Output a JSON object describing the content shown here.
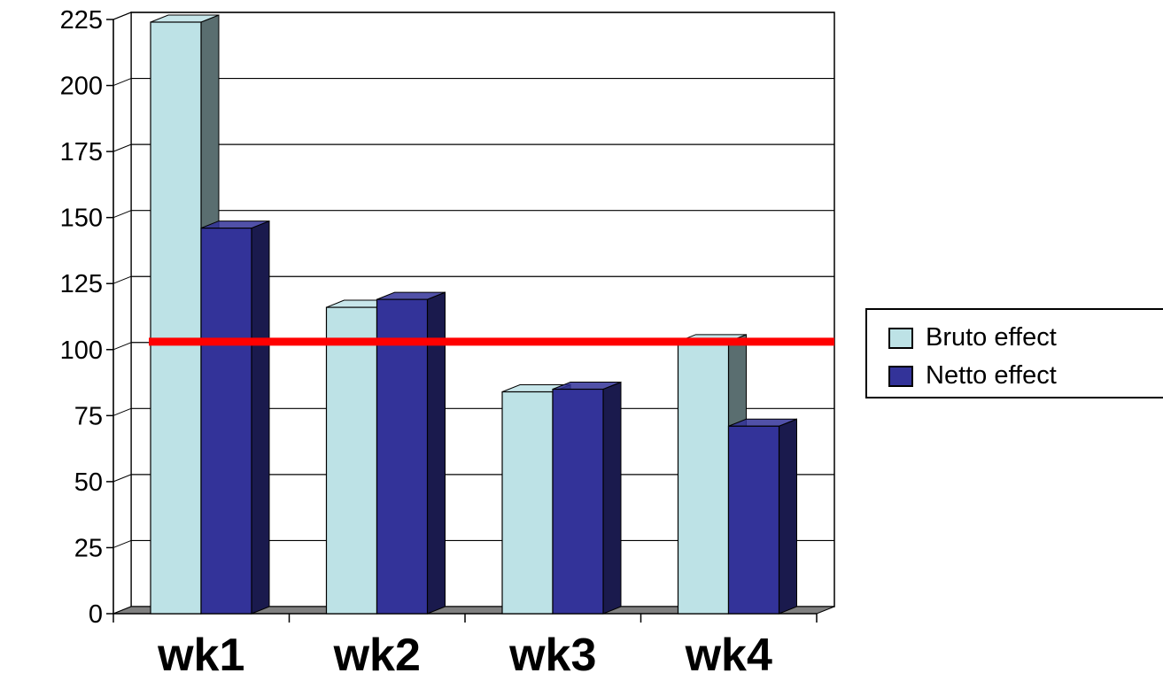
{
  "chart_data": {
    "type": "bar",
    "categories": [
      "wk1",
      "wk2",
      "wk3",
      "wk4"
    ],
    "series": [
      {
        "name": "Bruto effect",
        "values": [
          224,
          116,
          84,
          103
        ],
        "color": "#bde2e6",
        "side_color": "#5a6e70"
      },
      {
        "name": "Netto effect",
        "values": [
          146,
          119,
          85,
          71
        ],
        "color": "#333399",
        "side_color": "#1a1a4d"
      }
    ],
    "reference_line": {
      "value": 103,
      "color": "#ff0000"
    },
    "ylim": [
      0,
      225
    ],
    "yticks": [
      "0",
      "25",
      "50",
      "75",
      "100",
      "125",
      "150",
      "175",
      "200",
      "225"
    ],
    "grid": true,
    "legend_position": "right",
    "title": "",
    "xlabel": "",
    "ylabel": ""
  }
}
